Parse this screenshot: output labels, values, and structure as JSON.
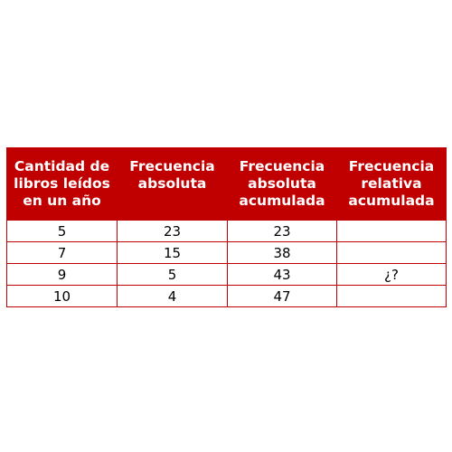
{
  "table": {
    "headers": [
      [
        "Cantidad de",
        "libros leídos",
        "en un año"
      ],
      [
        "Frecuencia",
        "absoluta"
      ],
      [
        "Frecuencia",
        "absoluta",
        "acumulada"
      ],
      [
        "Frecuencia",
        "relativa",
        "acumulada"
      ]
    ],
    "rows": [
      [
        "5",
        "23",
        "23",
        ""
      ],
      [
        "7",
        "15",
        "38",
        ""
      ],
      [
        "9",
        "5",
        "43",
        "¿?"
      ],
      [
        "10",
        "4",
        "47",
        ""
      ]
    ],
    "colors": {
      "header_background": "#c00000",
      "header_text": "#ffffff",
      "border": "#c00000",
      "cell_text": "#000000"
    }
  }
}
